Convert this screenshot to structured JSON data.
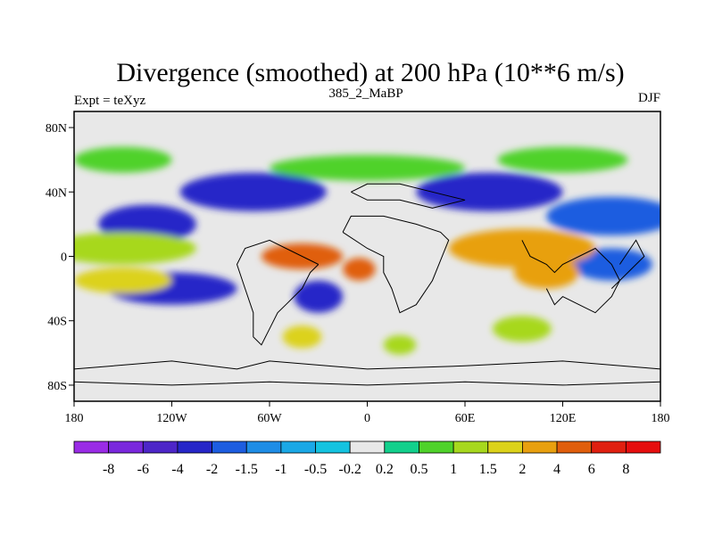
{
  "chart_data": {
    "type": "heatmap",
    "title": "Divergence (smoothed) at 200 hPa (10**6 m/s)",
    "subtitle_left": "Expt = teXyz",
    "subtitle_center": "385_2_MaBP",
    "subtitle_right": "DJF",
    "x_ticks": [
      "180",
      "120W",
      "60W",
      "0",
      "60E",
      "120E",
      "180"
    ],
    "x_tick_values": [
      -180,
      -120,
      -60,
      0,
      60,
      120,
      180
    ],
    "y_ticks": [
      "80N",
      "40N",
      "0",
      "40S",
      "80S"
    ],
    "y_tick_values": [
      80,
      40,
      0,
      -40,
      -80
    ],
    "xlim": [
      -180,
      180
    ],
    "ylim": [
      -90,
      90
    ],
    "colorbar": {
      "levels": [
        "-8",
        "-6",
        "-4",
        "-2",
        "-1.5",
        "-1",
        "-0.5",
        "-0.2",
        "0.2",
        "0.5",
        "1",
        "1.5",
        "2",
        "4",
        "6",
        "8"
      ],
      "colors": [
        "#9a2ce6",
        "#7a28dd",
        "#4d26c8",
        "#2626c8",
        "#1d5de0",
        "#1e8de6",
        "#1aa8e6",
        "#14c3e0",
        "#e8e8e8",
        "#12d08c",
        "#4fd22a",
        "#a7d81e",
        "#dcd21a",
        "#e8a00f",
        "#e05e0c",
        "#e02010",
        "#e60e0e"
      ]
    },
    "features": [
      {
        "lon": -135,
        "lat": 20,
        "value": -2.5,
        "rx": 30,
        "ry": 12
      },
      {
        "lon": -70,
        "lat": 40,
        "value": -3,
        "rx": 45,
        "ry": 12
      },
      {
        "lon": 75,
        "lat": 40,
        "value": -3,
        "rx": 45,
        "ry": 12
      },
      {
        "lon": 150,
        "lat": 25,
        "value": -1.6,
        "rx": 40,
        "ry": 12
      },
      {
        "lon": -120,
        "lat": -20,
        "value": -3,
        "rx": 40,
        "ry": 10
      },
      {
        "lon": -30,
        "lat": -25,
        "value": -3,
        "rx": 15,
        "ry": 10
      },
      {
        "lon": 150,
        "lat": -5,
        "value": -1.6,
        "rx": 25,
        "ry": 10
      },
      {
        "lon": -150,
        "lat": 5,
        "value": 1.2,
        "rx": 45,
        "ry": 10
      },
      {
        "lon": -40,
        "lat": 0,
        "value": 5,
        "rx": 25,
        "ry": 8
      },
      {
        "lon": -5,
        "lat": -8,
        "value": 6,
        "rx": 10,
        "ry": 7
      },
      {
        "lon": 95,
        "lat": 5,
        "value": 3,
        "rx": 45,
        "ry": 12
      },
      {
        "lon": 110,
        "lat": -10,
        "value": 3,
        "rx": 20,
        "ry": 10
      },
      {
        "lon": -150,
        "lat": -15,
        "value": 1.6,
        "rx": 30,
        "ry": 8
      },
      {
        "lon": -40,
        "lat": -50,
        "value": 2,
        "rx": 12,
        "ry": 7
      },
      {
        "lon": 20,
        "lat": -55,
        "value": 1.5,
        "rx": 10,
        "ry": 6
      },
      {
        "lon": 95,
        "lat": -45,
        "value": 1.5,
        "rx": 18,
        "ry": 8
      },
      {
        "lon": 0,
        "lat": 55,
        "value": 0.8,
        "rx": 60,
        "ry": 8
      },
      {
        "lon": 120,
        "lat": 60,
        "value": 0.7,
        "rx": 40,
        "ry": 8
      },
      {
        "lon": -150,
        "lat": 60,
        "value": 0.7,
        "rx": 30,
        "ry": 8
      }
    ]
  }
}
